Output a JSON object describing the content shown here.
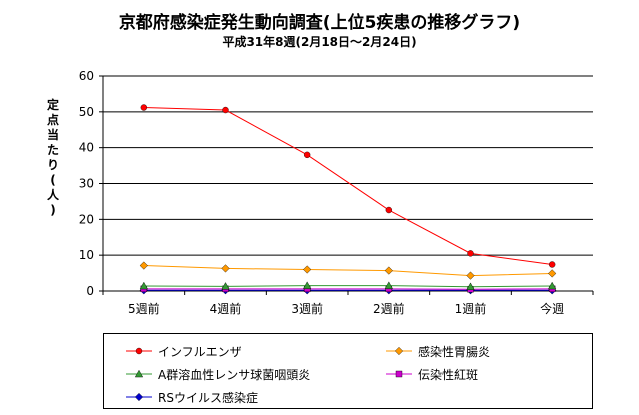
{
  "chart_data": {
    "type": "line",
    "title": "京都府感染症発生動向調査(上位5疾患の推移グラフ)",
    "subtitle": "平成31年8週(2月18日～2月24日)",
    "ylabel": "定点当たり(人)",
    "categories": [
      "5週前",
      "4週前",
      "3週前",
      "2週前",
      "1週前",
      "今週"
    ],
    "ylim": [
      0,
      60
    ],
    "yticks": [
      0,
      10,
      20,
      30,
      40,
      50,
      60
    ],
    "grid": "horizontal",
    "legend_position": "bottom",
    "series": [
      {
        "name": "インフルエンザ",
        "color": "#ff0000",
        "marker": "circle",
        "values": [
          51.2,
          50.5,
          38.0,
          22.6,
          10.5,
          7.4
        ]
      },
      {
        "name": "感染性胃腸炎",
        "color": "#ff9900",
        "marker": "diamond",
        "values": [
          7.1,
          6.3,
          6.0,
          5.7,
          4.3,
          4.9
        ]
      },
      {
        "name": "A群溶血性レンサ球菌咽頭炎",
        "color": "#339933",
        "marker": "triangle",
        "values": [
          1.4,
          1.3,
          1.5,
          1.5,
          1.2,
          1.4
        ]
      },
      {
        "name": "伝染性紅斑",
        "color": "#cc00cc",
        "marker": "square",
        "values": [
          0.6,
          0.6,
          0.6,
          0.6,
          0.5,
          0.6
        ]
      },
      {
        "name": "RSウイルス感染症",
        "color": "#0000cc",
        "marker": "diamond",
        "values": [
          0.2,
          0.2,
          0.2,
          0.2,
          0.2,
          0.2
        ]
      }
    ]
  }
}
